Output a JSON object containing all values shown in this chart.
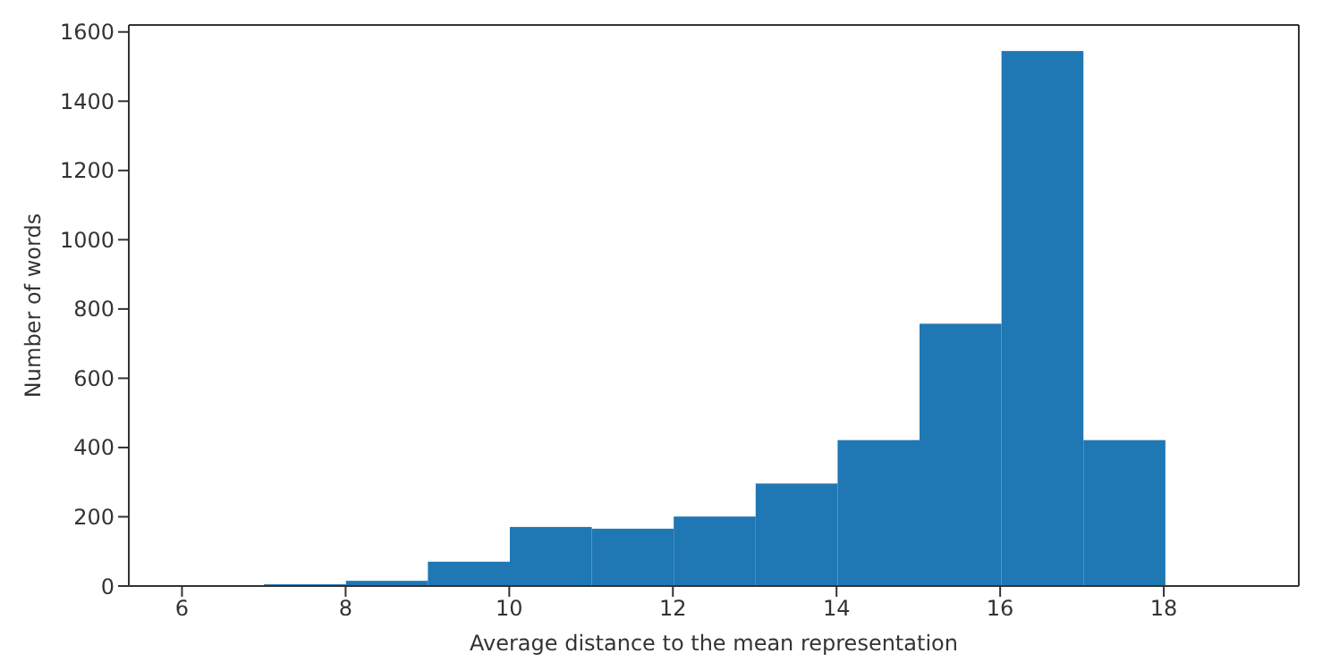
{
  "chart_data": {
    "type": "histogram",
    "xlabel": "Average distance to the mean representation",
    "ylabel": "Number of words",
    "bins": [
      6,
      7,
      8,
      9,
      10,
      11,
      12,
      13,
      14,
      15,
      16,
      17,
      18,
      19
    ],
    "values": [
      0,
      5,
      15,
      70,
      170,
      165,
      200,
      295,
      420,
      755,
      1540,
      420,
      0
    ],
    "color": "#1f77b4",
    "xlim": [
      5.35,
      19.65
    ],
    "xticks": [
      6,
      8,
      10,
      12,
      14,
      16,
      18
    ],
    "ylim": [
      0,
      1620
    ],
    "yticks": [
      0,
      200,
      400,
      600,
      800,
      1000,
      1200,
      1400,
      1600
    ],
    "grid": false
  }
}
